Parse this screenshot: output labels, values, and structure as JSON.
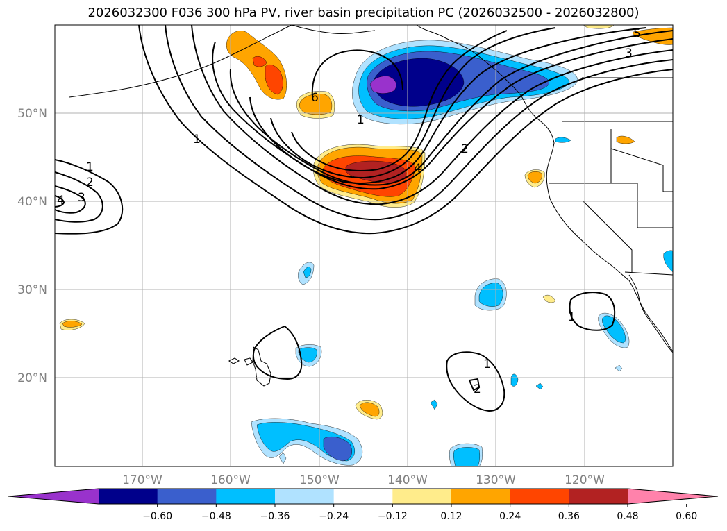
{
  "title": "2026032300 F036 300 hPa PV, river basin precipitation PC (2026032500 - 2026032800)",
  "lat_labels": [
    "50°N",
    "40°N",
    "30°N",
    "20°N"
  ],
  "lon_labels": [
    "170°W",
    "160°W",
    "150°W",
    "140°W",
    "130°W",
    "120°W"
  ],
  "contour_labels": [
    "1",
    "2",
    "3",
    "4",
    "1",
    "2",
    "3",
    "4",
    "5",
    "6",
    "1",
    "1",
    "1",
    "2"
  ],
  "colorbar": {
    "ticks": [
      "−0.60",
      "−0.48",
      "−0.36",
      "−0.24",
      "−0.12",
      "0.12",
      "0.24",
      "0.36",
      "0.48",
      "0.60"
    ],
    "colors": [
      "#9932CC",
      "#00008B",
      "#3A5FCD",
      "#00BFFF",
      "#B0E2FF",
      "#FFFFFF",
      "#FFEC8B",
      "#FFA500",
      "#FF4500",
      "#B22222",
      "#FF82AB"
    ]
  },
  "shading_colors": {
    "neg_light": "#B0E2FF",
    "neg_mid": "#00BFFF",
    "neg_strong": "#3A5FCD",
    "neg_deep": "#00008B",
    "neg_extreme": "#9932CC",
    "pos_light": "#FFEC8B",
    "pos_mid": "#FFA500",
    "pos_strong": "#FF4500",
    "pos_deep": "#B22222"
  }
}
